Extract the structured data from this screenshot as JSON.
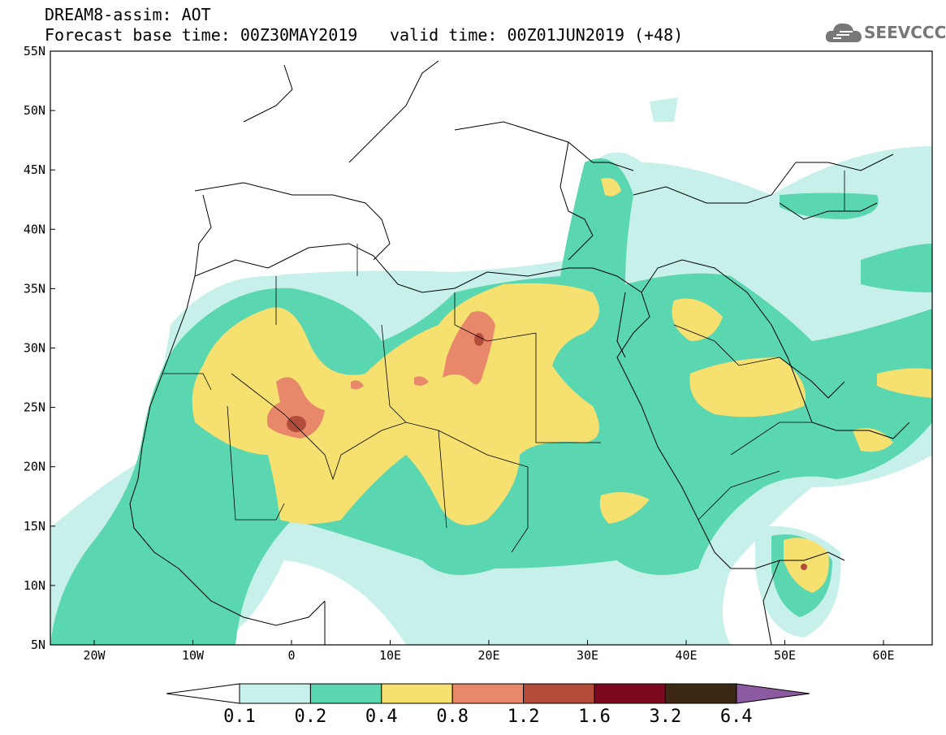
{
  "title": {
    "line1": "DREAM8-assim: AOT",
    "line2": "Forecast base time: 00Z30MAY2019",
    "line3": "valid time: 00Z01JUN2019 (+48)"
  },
  "logo": {
    "text": "SEEVCCC",
    "icon": "cloud-icon"
  },
  "map": {
    "lat_labels": [
      "55N",
      "50N",
      "45N",
      "40N",
      "35N",
      "30N",
      "25N",
      "20N",
      "15N",
      "10N",
      "5N"
    ],
    "lon_labels": [
      "20W",
      "10W",
      "0",
      "10E",
      "20E",
      "30E",
      "40E",
      "50E",
      "60E"
    ],
    "extent": {
      "lon": [
        -25,
        65
      ],
      "lat": [
        5,
        55
      ]
    }
  },
  "colorbar": {
    "labels": [
      "0.1",
      "0.2",
      "0.4",
      "0.8",
      "1.2",
      "1.6",
      "3.2",
      "6.4"
    ],
    "colors": [
      "#c8f0ea",
      "#5ad6b0",
      "#f5e070",
      "#e8886a",
      "#b44c3c",
      "#7c0820",
      "#3c2814",
      "#8c5aa0"
    ]
  }
}
